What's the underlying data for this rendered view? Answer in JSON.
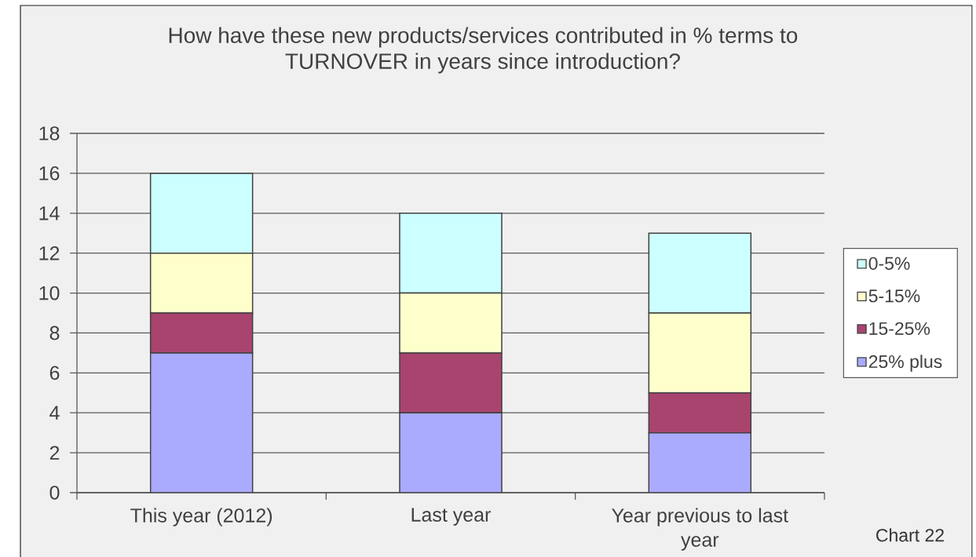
{
  "chart_data": {
    "type": "bar",
    "title": "How have these new products/services contributed in % terms to TURNOVER in years since introduction?",
    "categories": [
      "This year (2012)",
      "Last year",
      "Year previous to last year"
    ],
    "stacked": true,
    "series": [
      {
        "name": "25% plus",
        "color": "#aaaaff",
        "values": [
          7,
          4,
          3
        ]
      },
      {
        "name": "15-25%",
        "color": "#a9446f",
        "values": [
          2,
          3,
          2
        ]
      },
      {
        "name": "5-15%",
        "color": "#ffffcc",
        "values": [
          3,
          3,
          4
        ]
      },
      {
        "name": "0-5%",
        "color": "#ccffff",
        "values": [
          4,
          4,
          4
        ]
      }
    ],
    "ylim": [
      0,
      18
    ],
    "yticks": [
      0,
      2,
      4,
      6,
      8,
      10,
      12,
      14,
      16,
      18
    ],
    "grid": "y",
    "legend": "right",
    "annotations": [
      "Chart 22"
    ]
  }
}
